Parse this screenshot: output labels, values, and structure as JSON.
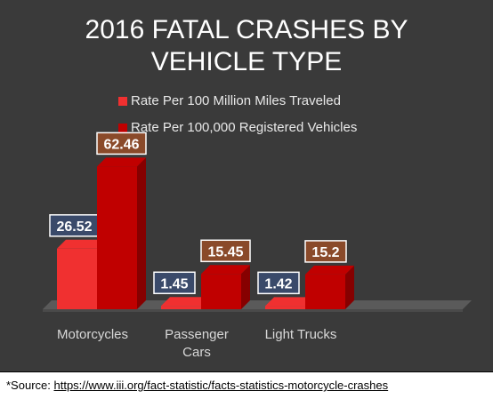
{
  "chart_data": {
    "type": "bar",
    "title_lines": [
      "2016 FATAL CRASHES BY",
      "VEHICLE TYPE"
    ],
    "categories": [
      [
        "Motorcycles"
      ],
      [
        "Passenger",
        "Cars"
      ],
      [
        "Light Trucks"
      ]
    ],
    "series": [
      {
        "name": "Rate Per 100 Million Miles Traveled",
        "values": [
          26.52,
          1.45,
          1.42
        ],
        "color": "#f03030",
        "label_box_color": "#3a4a6a"
      },
      {
        "name": "Rate Per 100,000 Registered Vehicles",
        "values": [
          62.46,
          15.45,
          15.2
        ],
        "color": "#c00000",
        "label_box_color": "#8a4a2a"
      }
    ],
    "ylim": [
      0,
      70
    ],
    "grid": false,
    "legend_position": "top"
  },
  "source": {
    "prefix": "*Source: ",
    "link_text": "https://www.iii.org/fact-statistic/facts-statistics-motorcycle-crashes"
  }
}
